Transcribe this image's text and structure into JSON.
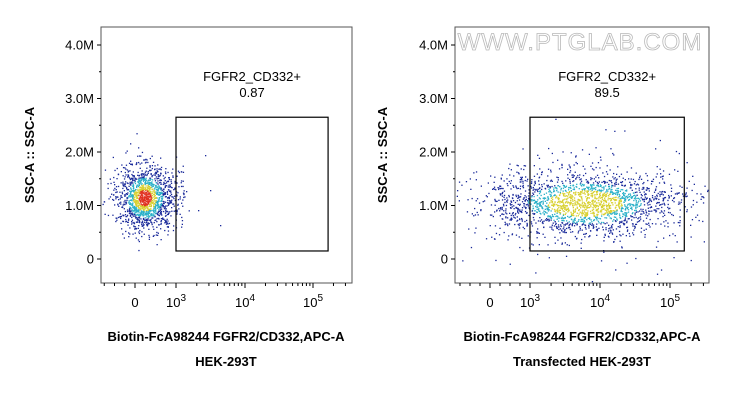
{
  "watermark": "WWW.PTGLAB.COM",
  "chart_data": [
    {
      "type": "scatter",
      "xlabel": "Biotin-FcA98244 FGFR2/CD332,APC-A",
      "ylabel": "SSC-A :: SSC-A",
      "caption": "HEK-293T",
      "y_ticks": [
        "0",
        "1.0M",
        "2.0M",
        "3.0M",
        "4.0M"
      ],
      "x_ticks": [
        {
          "base": "0",
          "exp": ""
        },
        {
          "base": "10",
          "exp": "3"
        },
        {
          "base": "10",
          "exp": "4"
        },
        {
          "base": "10",
          "exp": "5"
        }
      ],
      "ylim": [
        0,
        4300000
      ],
      "gate": {
        "name": "FGFR2_CD332+",
        "value": "0.87",
        "x_range": [
          1000,
          160000
        ],
        "y_range": [
          150000,
          2650000
        ]
      },
      "population": {
        "x_center": 230,
        "y_center": 1150000,
        "note": "density plot, events concentrated near x 0-1000"
      }
    },
    {
      "type": "scatter",
      "xlabel": "Biotin-FcA98244 FGFR2/CD332,APC-A",
      "ylabel": "SSC-A :: SSC-A",
      "caption": "Transfected HEK-293T",
      "y_ticks": [
        "0",
        "1.0M",
        "2.0M",
        "3.0M",
        "4.0M"
      ],
      "x_ticks": [
        {
          "base": "0",
          "exp": ""
        },
        {
          "base": "10",
          "exp": "3"
        },
        {
          "base": "10",
          "exp": "4"
        },
        {
          "base": "10",
          "exp": "5"
        }
      ],
      "ylim": [
        0,
        4300000
      ],
      "gate": {
        "name": "FGFR2_CD332+",
        "value": "89.5",
        "x_range": [
          1000,
          160000
        ],
        "y_range": [
          150000,
          2650000
        ]
      },
      "population": {
        "x_center": 6000,
        "y_center": 1050000,
        "note": "density plot, events spread across x 10^3-10^5"
      }
    }
  ],
  "colors": {
    "low": "#1a2a9a",
    "mid": "#2ab0c8",
    "high": "#d8d030",
    "peak": "#e03020"
  }
}
